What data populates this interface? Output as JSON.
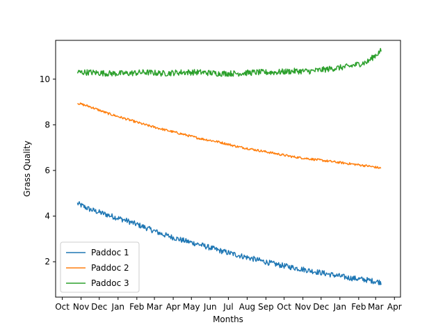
{
  "chart_data": {
    "type": "line",
    "title": "",
    "xlabel": "Months",
    "ylabel": "Grass Quality",
    "x_ticks": [
      "Oct",
      "Nov",
      "Dec",
      "Jan",
      "Feb",
      "Mar",
      "Apr",
      "May",
      "Jun",
      "Jul",
      "Aug",
      "Sep",
      "Oct",
      "Nov",
      "Dec",
      "Jan",
      "Feb",
      "Mar",
      "Apr"
    ],
    "x_tick_dates": [
      "2019-10-01",
      "2019-11-01",
      "2019-12-01",
      "2020-01-01",
      "2020-02-01",
      "2020-03-01",
      "2020-04-01",
      "2020-05-01",
      "2020-06-01",
      "2020-07-01",
      "2020-08-01",
      "2020-09-01",
      "2020-10-01",
      "2020-11-01",
      "2020-12-01",
      "2021-01-01",
      "2021-02-01",
      "2021-03-01",
      "2021-04-01"
    ],
    "xlim": [
      "2019-09-20",
      "2021-04-11"
    ],
    "ylim": [
      0.45,
      11.7
    ],
    "y_ticks": [
      2,
      4,
      6,
      8,
      10
    ],
    "grid": false,
    "legend_position": "lower-left",
    "series": [
      {
        "name": "Paddoc 1",
        "color": "#1f77b4",
        "x": [
          "2019-10-26",
          "2019-11-15",
          "2019-12-15",
          "2020-01-15",
          "2020-02-15",
          "2020-03-15",
          "2020-04-15",
          "2020-05-15",
          "2020-06-15",
          "2020-07-15",
          "2020-08-15",
          "2020-09-15",
          "2020-10-15",
          "2020-11-15",
          "2020-12-15",
          "2021-01-15",
          "2021-02-15",
          "2021-03-10"
        ],
        "y": [
          4.55,
          4.3,
          4.05,
          3.8,
          3.5,
          3.2,
          2.95,
          2.75,
          2.5,
          2.3,
          2.1,
          1.9,
          1.75,
          1.6,
          1.45,
          1.3,
          1.2,
          1.1
        ],
        "noise": 0.12
      },
      {
        "name": "Paddoc 2",
        "color": "#ff7f0e",
        "x": [
          "2019-10-26",
          "2019-11-15",
          "2019-12-15",
          "2020-01-15",
          "2020-02-15",
          "2020-03-15",
          "2020-04-15",
          "2020-05-15",
          "2020-06-15",
          "2020-07-15",
          "2020-08-15",
          "2020-09-15",
          "2020-10-15",
          "2020-11-15",
          "2020-12-15",
          "2021-01-15",
          "2021-02-15",
          "2021-03-10"
        ],
        "y": [
          8.95,
          8.8,
          8.5,
          8.25,
          8.0,
          7.8,
          7.6,
          7.4,
          7.25,
          7.05,
          6.9,
          6.75,
          6.6,
          6.5,
          6.4,
          6.3,
          6.2,
          6.1
        ],
        "noise": 0.05
      },
      {
        "name": "Paddoc 3",
        "color": "#2ca02c",
        "x": [
          "2019-10-26",
          "2019-11-15",
          "2019-12-15",
          "2020-01-15",
          "2020-02-15",
          "2020-03-15",
          "2020-04-15",
          "2020-05-15",
          "2020-06-15",
          "2020-07-15",
          "2020-08-15",
          "2020-09-15",
          "2020-10-15",
          "2020-11-15",
          "2020-12-15",
          "2021-01-15",
          "2021-02-15",
          "2021-03-10"
        ],
        "y": [
          10.3,
          10.3,
          10.25,
          10.25,
          10.3,
          10.25,
          10.3,
          10.3,
          10.25,
          10.25,
          10.3,
          10.3,
          10.35,
          10.35,
          10.45,
          10.55,
          10.75,
          11.25
        ],
        "noise": 0.13
      }
    ]
  }
}
